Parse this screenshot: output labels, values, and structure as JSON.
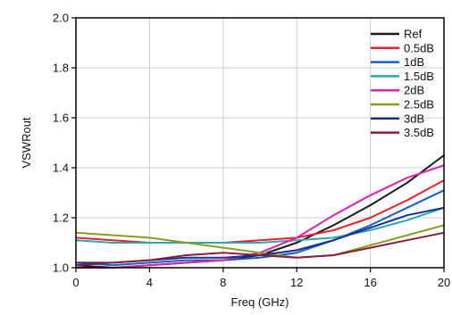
{
  "chart_data": {
    "type": "line",
    "title": "",
    "xlabel": "Freq (GHz)",
    "ylabel": "VSWRout",
    "xlim": [
      0,
      20
    ],
    "ylim": [
      1.0,
      2.0
    ],
    "x_ticks": [
      0,
      4,
      8,
      12,
      16,
      20
    ],
    "y_ticks": [
      1.0,
      1.2,
      1.4,
      1.6,
      1.8,
      2.0
    ],
    "x_tick_labels": [
      "0",
      "4",
      "8",
      "12",
      "16",
      "20"
    ],
    "y_tick_labels": [
      "1.0",
      "1.2",
      "1.4",
      "1.6",
      "1.8",
      "2.0"
    ],
    "grid": true,
    "legend_position": "top-right",
    "series": [
      {
        "name": "Ref",
        "color": "#1a1a1a",
        "x": [
          0,
          2,
          4,
          6,
          8,
          10,
          12,
          14,
          16,
          18,
          20
        ],
        "y": [
          1.01,
          1.0,
          1.01,
          1.02,
          1.03,
          1.05,
          1.1,
          1.17,
          1.25,
          1.34,
          1.45
        ]
      },
      {
        "name": "0.5dB",
        "color": "#e8202a",
        "x": [
          0,
          2,
          4,
          6,
          8,
          10,
          12,
          14,
          16,
          18,
          20
        ],
        "y": [
          1.12,
          1.11,
          1.1,
          1.1,
          1.1,
          1.11,
          1.12,
          1.15,
          1.2,
          1.27,
          1.35
        ]
      },
      {
        "name": "1dB",
        "color": "#1560c8",
        "x": [
          0,
          2,
          4,
          6,
          8,
          10,
          12,
          14,
          16,
          18,
          20
        ],
        "y": [
          1.02,
          1.01,
          1.02,
          1.03,
          1.03,
          1.04,
          1.06,
          1.11,
          1.17,
          1.24,
          1.31
        ]
      },
      {
        "name": "1.5dB",
        "color": "#2aa7b0",
        "x": [
          0,
          2,
          4,
          6,
          8,
          10,
          12,
          14,
          16,
          18,
          20
        ],
        "y": [
          1.11,
          1.1,
          1.1,
          1.1,
          1.1,
          1.1,
          1.11,
          1.12,
          1.15,
          1.19,
          1.24
        ]
      },
      {
        "name": "2dB",
        "color": "#e020b0",
        "x": [
          0,
          2,
          4,
          6,
          8,
          10,
          12,
          14,
          16,
          18,
          20
        ],
        "y": [
          1.0,
          1.0,
          1.01,
          1.02,
          1.03,
          1.06,
          1.12,
          1.21,
          1.29,
          1.36,
          1.41
        ]
      },
      {
        "name": "2.5dB",
        "color": "#8c9c20",
        "x": [
          0,
          2,
          4,
          6,
          8,
          10,
          12,
          14,
          16,
          18,
          20
        ],
        "y": [
          1.14,
          1.13,
          1.12,
          1.1,
          1.08,
          1.06,
          1.04,
          1.05,
          1.09,
          1.13,
          1.17
        ]
      },
      {
        "name": "3dB",
        "color": "#1a2e8c",
        "x": [
          0,
          2,
          4,
          6,
          8,
          10,
          12,
          14,
          16,
          18,
          20
        ],
        "y": [
          1.02,
          1.02,
          1.03,
          1.04,
          1.04,
          1.05,
          1.07,
          1.11,
          1.16,
          1.21,
          1.24
        ]
      },
      {
        "name": "3.5dB",
        "color": "#8c1c3a",
        "x": [
          0,
          2,
          4,
          6,
          8,
          10,
          12,
          14,
          16,
          18,
          20
        ],
        "y": [
          1.01,
          1.02,
          1.03,
          1.05,
          1.06,
          1.05,
          1.04,
          1.05,
          1.08,
          1.11,
          1.14
        ]
      }
    ]
  }
}
